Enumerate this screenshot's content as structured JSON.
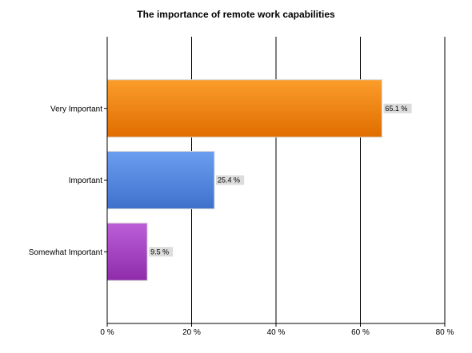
{
  "chart_data": {
    "type": "bar",
    "orientation": "horizontal",
    "title": "The importance of remote work capabilities",
    "categories": [
      "Very Important",
      "Important",
      "Somewhat Important"
    ],
    "values": [
      65.1,
      25.4,
      9.5
    ],
    "data_labels": [
      "65.1 %",
      "25.4 %",
      "9.5 %"
    ],
    "bar_colors": [
      "#f07a00",
      "#4a7fd8",
      "#a23fc0"
    ],
    "xlim": [
      0,
      80
    ],
    "x_ticks": [
      0,
      20,
      40,
      60,
      80
    ],
    "x_tick_labels": [
      "0 %",
      "20 %",
      "40 %",
      "60 %",
      "80 %"
    ],
    "xlabel": "",
    "ylabel": "",
    "grid": true,
    "legend": "none"
  }
}
